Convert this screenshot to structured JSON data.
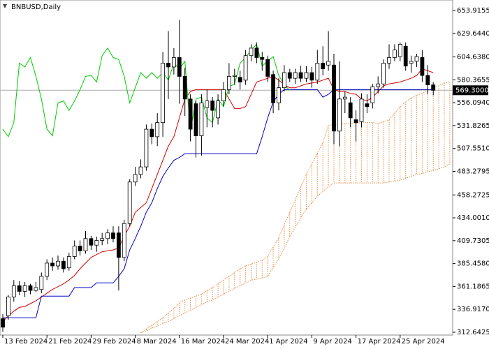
{
  "chart_data": {
    "type": "candlestick",
    "title": "BNBUSD,Daily",
    "categories": [
      "13 Feb 2024",
      null,
      null,
      null,
      null,
      null,
      null,
      null,
      "21 Feb 2024",
      null,
      null,
      null,
      null,
      null,
      null,
      null,
      "29 Feb 2024",
      null,
      null,
      null,
      null,
      null,
      null,
      null,
      "8 Mar 2024",
      null,
      null,
      null,
      null,
      null,
      null,
      null,
      "16 Mar 2024",
      null,
      null,
      null,
      null,
      null,
      null,
      null,
      "24 Mar 2024",
      null,
      null,
      null,
      null,
      null,
      null,
      null,
      "1 Apr 2024",
      null,
      null,
      null,
      null,
      null,
      null,
      null,
      "9 Apr 2024",
      null,
      null,
      null,
      null,
      null,
      null,
      null,
      "17 Apr 2024",
      null,
      null,
      null,
      null,
      null,
      null,
      null,
      "25 Apr 2024",
      null,
      null,
      null,
      null,
      null,
      null,
      null,
      null,
      null
    ],
    "ohlc": {
      "open": [
        327,
        330,
        350,
        362,
        356,
        362,
        357,
        358,
        372,
        386,
        383,
        388,
        381,
        393,
        404,
        399,
        412,
        405,
        410,
        412,
        418,
        418,
        392,
        428,
        472,
        480,
        488,
        528,
        520,
        535,
        598,
        594,
        604,
        584,
        560,
        555,
        521,
        551,
        558,
        540,
        558,
        570,
        584,
        583,
        580,
        606,
        614,
        604,
        602,
        586,
        556,
        572,
        588,
        582,
        588,
        582,
        588,
        580,
        598,
        596,
        596,
        526,
        560,
        556,
        538,
        536,
        555,
        556,
        573,
        576,
        598,
        604,
        605,
        616,
        598,
        600,
        604,
        585,
        575,
        null,
        null,
        null
      ],
      "high": [
        332,
        352,
        368,
        367,
        366,
        364,
        366,
        376,
        390,
        392,
        394,
        392,
        397,
        410,
        410,
        420,
        415,
        414,
        418,
        422,
        425,
        425,
        432,
        475,
        488,
        496,
        533,
        534,
        545,
        610,
        632,
        614,
        644,
        593,
        565,
        558,
        565,
        570,
        562,
        565,
        578,
        598,
        592,
        590,
        612,
        618,
        620,
        610,
        606,
        590,
        582,
        596,
        592,
        592,
        595,
        595,
        594,
        612,
        616,
        632,
        608,
        600,
        568,
        562,
        548,
        566,
        565,
        576,
        584,
        602,
        618,
        618,
        620,
        620,
        606,
        608,
        612,
        596,
        578,
        null,
        null,
        null
      ],
      "low": [
        313,
        326,
        345,
        352,
        350,
        353,
        355,
        354,
        368,
        378,
        379,
        376,
        378,
        390,
        394,
        396,
        400,
        398,
        405,
        406,
        408,
        357,
        388,
        425,
        468,
        476,
        484,
        512,
        510,
        520,
        560,
        586,
        555,
        542,
        515,
        498,
        500,
        530,
        530,
        533,
        552,
        565,
        575,
        570,
        575,
        600,
        598,
        590,
        578,
        545,
        548,
        568,
        578,
        576,
        578,
        578,
        572,
        576,
        585,
        590,
        512,
        510,
        545,
        530,
        515,
        530,
        545,
        550,
        566,
        572,
        592,
        600,
        600,
        590,
        588,
        594,
        578,
        565,
        564,
        null,
        null,
        null
      ],
      "close": [
        318,
        350,
        362,
        356,
        362,
        357,
        360,
        372,
        386,
        383,
        388,
        380,
        393,
        404,
        399,
        412,
        405,
        410,
        412,
        418,
        412,
        392,
        428,
        472,
        480,
        488,
        528,
        520,
        535,
        598,
        594,
        604,
        584,
        560,
        528,
        521,
        556,
        558,
        548,
        558,
        570,
        584,
        585,
        578,
        606,
        614,
        604,
        602,
        584,
        556,
        572,
        588,
        582,
        588,
        582,
        588,
        580,
        598,
        592,
        600,
        526,
        560,
        562,
        540,
        535,
        560,
        552,
        573,
        576,
        598,
        604,
        612,
        618,
        595,
        600,
        605,
        585,
        575,
        569.3,
        null,
        null,
        null
      ],
      "up_color": "#ffffff",
      "down_color": "#000000",
      "outline_color": "#000000"
    },
    "lines": [
      {
        "color": "#d40000",
        "values": [
          324,
          330,
          335,
          339,
          340,
          343,
          346,
          350,
          354,
          358,
          361,
          364,
          368,
          373,
          380,
          386,
          392,
          395,
          398,
          399,
          400,
          402,
          415,
          425,
          440,
          445,
          450,
          465,
          480,
          495,
          510,
          520,
          540,
          560,
          568,
          570,
          570,
          570,
          570,
          570,
          570,
          560,
          550,
          550,
          552,
          565,
          578,
          580,
          582,
          584,
          580,
          575,
          572,
          572,
          574,
          576,
          577,
          578,
          580,
          582,
          570,
          568,
          568,
          566,
          565,
          560,
          558,
          562,
          568,
          574,
          576,
          577,
          578,
          580,
          582,
          585,
          592,
          590,
          588,
          null,
          null,
          null
        ]
      },
      {
        "color": "#0000c8",
        "values": [
          328,
          328,
          328,
          328,
          328,
          328,
          328,
          351,
          351,
          351,
          351,
          351,
          351,
          360,
          360,
          360,
          360,
          365,
          365,
          365,
          365,
          372,
          380,
          400,
          412,
          425,
          440,
          450,
          465,
          478,
          487,
          495,
          498,
          502,
          502,
          502,
          502,
          502,
          502,
          502,
          502,
          502,
          502,
          502,
          502,
          502,
          502,
          520,
          540,
          557,
          565,
          570,
          570,
          570,
          570,
          570,
          570,
          570,
          562,
          565,
          570,
          570,
          570,
          570,
          570,
          570,
          570,
          570,
          570,
          570,
          570,
          570,
          570,
          570,
          570,
          570,
          570,
          570,
          570,
          null,
          null,
          null
        ]
      },
      {
        "color": "#00cc00",
        "values": [
          528,
          520,
          535,
          598,
          594,
          604,
          584,
          560,
          528,
          521,
          556,
          558,
          548,
          558,
          570,
          584,
          585,
          578,
          606,
          614,
          604,
          602,
          584,
          556,
          572,
          588,
          582,
          588,
          582,
          588,
          580,
          598,
          592,
          600,
          526,
          560,
          562,
          540,
          535,
          560,
          552,
          573,
          576,
          598,
          604,
          612,
          618,
          595,
          600,
          605,
          585,
          575,
          569.3,
          null,
          null,
          null,
          null,
          null,
          null,
          null,
          null,
          null,
          null,
          null,
          null,
          null,
          null,
          null,
          null,
          null,
          null,
          null,
          null,
          null,
          null,
          null,
          null,
          null,
          null,
          null,
          null,
          null
        ]
      }
    ],
    "cloud": {
      "color": "#e8904a",
      "upper": [
        null,
        null,
        null,
        null,
        null,
        null,
        null,
        null,
        null,
        null,
        null,
        null,
        null,
        null,
        null,
        null,
        null,
        null,
        null,
        null,
        null,
        null,
        null,
        null,
        null,
        312,
        316,
        320,
        324,
        328,
        333,
        338,
        344,
        347,
        349,
        351,
        353,
        357,
        360,
        364,
        368,
        372,
        376,
        380,
        383,
        385,
        387,
        389,
        393,
        403,
        413,
        427,
        440,
        453,
        467,
        480,
        491,
        502,
        514,
        532,
        533,
        534,
        534,
        534,
        534,
        535,
        535,
        535,
        534,
        536,
        538,
        545,
        552,
        557,
        561,
        564,
        566,
        569,
        572,
        574,
        577,
        578
      ],
      "lower": [
        null,
        null,
        null,
        null,
        null,
        null,
        null,
        null,
        null,
        null,
        null,
        null,
        null,
        null,
        null,
        null,
        null,
        null,
        null,
        null,
        null,
        null,
        null,
        null,
        null,
        312,
        314,
        317,
        319,
        322,
        324,
        327,
        330,
        333,
        336,
        339,
        342,
        345,
        347,
        350,
        353,
        356,
        359,
        362,
        365,
        368,
        369,
        370,
        372,
        381,
        391,
        402,
        414,
        424,
        434,
        443,
        450,
        457,
        462,
        467,
        471,
        471,
        471,
        471,
        471,
        471,
        471,
        471,
        471,
        471,
        472,
        473,
        474,
        476,
        478,
        480,
        481,
        483,
        484,
        486,
        488,
        491
      ]
    },
    "last_price": {
      "value": 569.3,
      "label": "569.3000"
    },
    "ylim": [
      309.68,
      665.02
    ],
    "yticks": [
      312.6425,
      {
        "value": 336.917,
        "label": "336.9170"
      },
      361.1865,
      {
        "value": 385.458,
        "label": "385.4580"
      },
      409.7305,
      {
        "value": 434.001,
        "label": "434.0010"
      },
      458.2725,
      483.2795,
      {
        "value": 507.551,
        "label": "507.5510"
      },
      531.8265,
      {
        "value": 556.094,
        "label": "556.0940"
      },
      580.3655,
      {
        "value": 604.638,
        "label": "604.6380"
      },
      {
        "value": 629.644,
        "label": "629.6440"
      },
      653.9155
    ]
  }
}
